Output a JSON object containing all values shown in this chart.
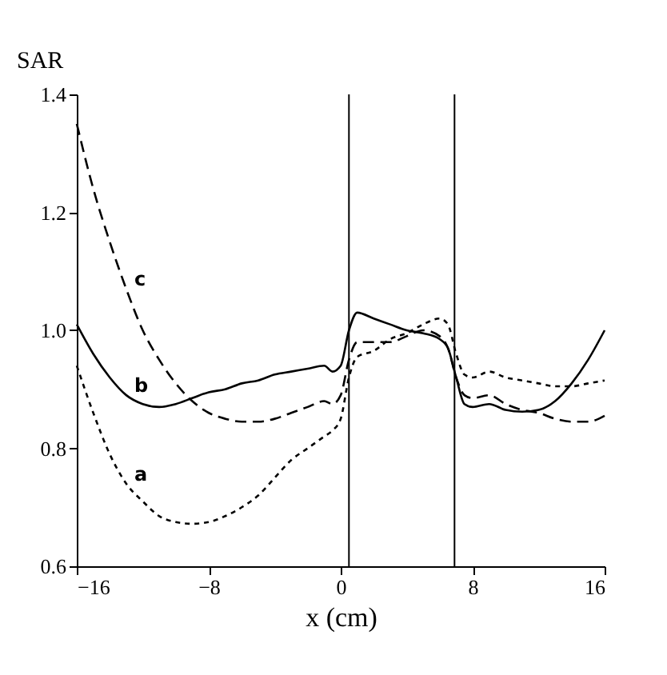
{
  "chart_data": {
    "type": "line",
    "xlabel": "x (cm)",
    "ylabel": "SAR",
    "x": [
      -16,
      -15,
      -14,
      -13,
      -12,
      -11,
      -10,
      -9,
      -8,
      -7,
      -6,
      -5,
      -4,
      -3,
      -2,
      -1,
      -0.5,
      0,
      0.5,
      1,
      2,
      3,
      4,
      5,
      6,
      6.5,
      7,
      7.5,
      8,
      9,
      10,
      11,
      12,
      13,
      14,
      15,
      16
    ],
    "series": [
      {
        "name": "a",
        "color": "#000000",
        "line_style": "dotted",
        "values": [
          0.94,
          0.86,
          0.79,
          0.74,
          0.71,
          0.685,
          0.675,
          0.672,
          0.675,
          0.685,
          0.7,
          0.72,
          0.75,
          0.78,
          0.8,
          0.82,
          0.83,
          0.85,
          0.92,
          0.955,
          0.965,
          0.985,
          0.995,
          1.01,
          1.02,
          1.01,
          0.96,
          0.925,
          0.92,
          0.93,
          0.92,
          0.915,
          0.91,
          0.905,
          0.905,
          0.91,
          0.915
        ]
      },
      {
        "name": "b",
        "color": "#000000",
        "line_style": "solid",
        "values": [
          1.01,
          0.96,
          0.92,
          0.89,
          0.875,
          0.87,
          0.875,
          0.885,
          0.895,
          0.9,
          0.91,
          0.915,
          0.925,
          0.93,
          0.935,
          0.94,
          0.93,
          0.94,
          1.0,
          1.03,
          1.02,
          1.01,
          1.0,
          0.995,
          0.985,
          0.97,
          0.92,
          0.875,
          0.87,
          0.875,
          0.865,
          0.862,
          0.865,
          0.88,
          0.91,
          0.95,
          1.0
        ]
      },
      {
        "name": "c",
        "color": "#000000",
        "line_style": "dashed",
        "values": [
          1.35,
          1.24,
          1.15,
          1.07,
          1.0,
          0.95,
          0.91,
          0.88,
          0.86,
          0.85,
          0.845,
          0.845,
          0.85,
          0.86,
          0.87,
          0.88,
          0.875,
          0.89,
          0.95,
          0.98,
          0.98,
          0.98,
          0.99,
          1.0,
          0.99,
          0.97,
          0.92,
          0.89,
          0.885,
          0.89,
          0.875,
          0.865,
          0.86,
          0.85,
          0.845,
          0.845,
          0.855
        ]
      }
    ],
    "xlim": [
      -16,
      16
    ],
    "xticks": [
      -16,
      -8,
      0,
      8,
      16
    ],
    "ylim": [
      0.6,
      1.4
    ],
    "yticks": [
      0.6,
      0.8,
      {
        "value": 1,
        "label": "1.0"
      },
      1.2,
      1.4
    ],
    "ref_lines": [
      {
        "axis": "x",
        "value": 0.5,
        "color": "#000000"
      },
      {
        "axis": "x",
        "value": 6.9,
        "color": "#000000"
      }
    ],
    "grid": false,
    "marker": "none"
  }
}
